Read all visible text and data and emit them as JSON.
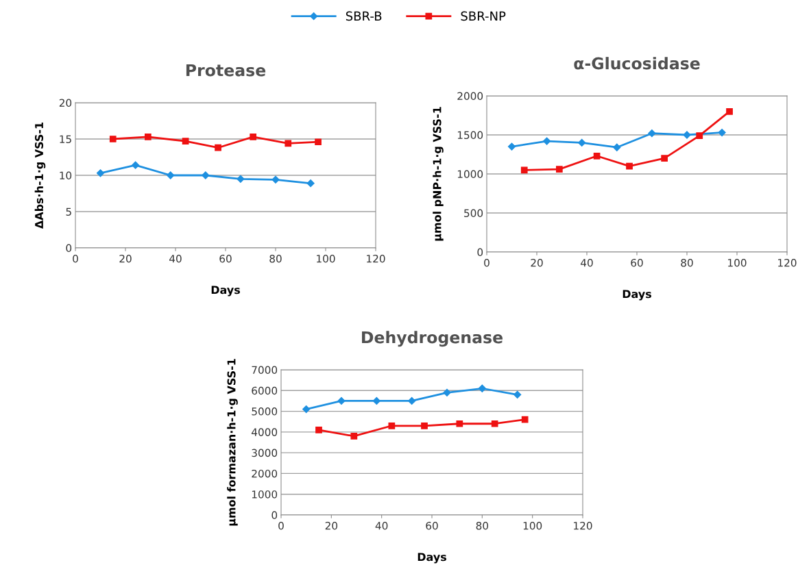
{
  "chart_data": [
    {
      "type": "line",
      "title": "Protease",
      "xlabel": "Days",
      "ylabel": "ΔAbs·h-1·g VSS-1",
      "xlim": [
        0,
        120
      ],
      "xticks": [
        0,
        20,
        40,
        60,
        80,
        100,
        120
      ],
      "ylim": [
        0,
        20
      ],
      "yticks": [
        0,
        5,
        10,
        15,
        20
      ],
      "grid": "y",
      "legend": "top",
      "series": [
        {
          "name": "SBR-B",
          "color": "#1e90e0",
          "marker": "diamond",
          "x": [
            10,
            24,
            38,
            52,
            66,
            80,
            94
          ],
          "values": [
            10.3,
            11.4,
            10.0,
            10.0,
            9.5,
            9.4,
            8.9
          ]
        },
        {
          "name": "SBR-NP",
          "color": "#ee1111",
          "marker": "square",
          "x": [
            15,
            29,
            44,
            57,
            71,
            85,
            97
          ],
          "values": [
            15.0,
            15.3,
            14.7,
            13.8,
            15.3,
            14.4,
            14.6
          ]
        }
      ]
    },
    {
      "type": "line",
      "title": "α-Glucosidase",
      "xlabel": "Days",
      "ylabel": "µmol pNP·h-1·g VSS-1",
      "xlim": [
        0,
        120
      ],
      "xticks": [
        0,
        20,
        40,
        60,
        80,
        100,
        120
      ],
      "ylim": [
        0,
        2000
      ],
      "yticks": [
        0,
        500,
        1000,
        1500,
        2000
      ],
      "grid": "y",
      "series": [
        {
          "color": "#1e90e0",
          "marker": "diamond",
          "x": [
            10,
            24,
            38,
            52,
            66,
            80,
            94
          ],
          "values": [
            1350,
            1420,
            1400,
            1340,
            1520,
            1500,
            1530
          ]
        },
        {
          "color": "#ee1111",
          "marker": "square",
          "x": [
            15,
            29,
            44,
            57,
            71,
            85,
            97
          ],
          "values": [
            1050,
            1060,
            1230,
            1100,
            1200,
            1490,
            1800
          ]
        }
      ]
    },
    {
      "type": "line",
      "title": "Dehydrogenase",
      "xlabel": "Days",
      "ylabel": "µmol formazan·h-1·g VSS-1",
      "xlim": [
        0,
        120
      ],
      "xticks": [
        0,
        20,
        40,
        60,
        80,
        100,
        120
      ],
      "ylim": [
        0,
        7000
      ],
      "yticks": [
        0,
        1000,
        2000,
        3000,
        4000,
        5000,
        6000,
        7000
      ],
      "grid": "y",
      "series": [
        {
          "color": "#1e90e0",
          "marker": "diamond",
          "x": [
            10,
            24,
            38,
            52,
            66,
            80,
            94
          ],
          "values": [
            5100,
            5500,
            5500,
            5500,
            5900,
            6100,
            5800
          ]
        },
        {
          "color": "#ee1111",
          "marker": "square",
          "x": [
            15,
            29,
            44,
            57,
            71,
            85,
            97
          ],
          "values": [
            4100,
            3800,
            4300,
            4300,
            4400,
            4400,
            4600
          ]
        }
      ]
    }
  ]
}
